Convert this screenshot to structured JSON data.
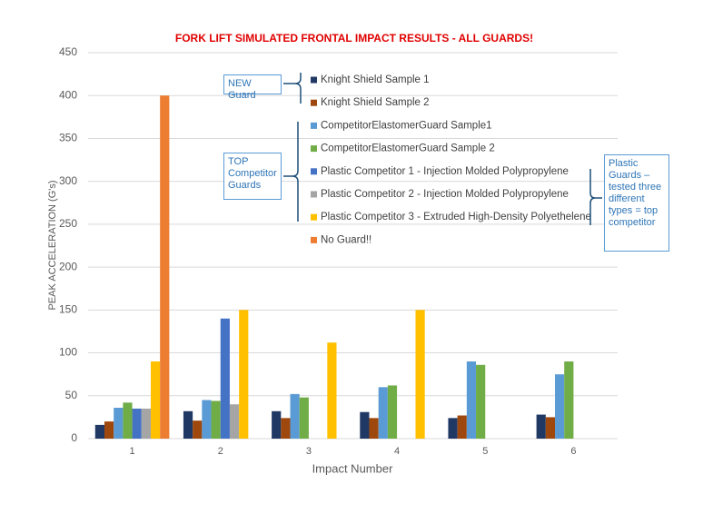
{
  "chart_data": {
    "type": "bar",
    "title": "FORK LIFT SIMULATED FRONTAL IMPACT RESULTS - ALL GUARDS!",
    "x_label": "Impact Number",
    "y_label": "PEAK ACCELERATION (G's)",
    "categories": [
      "1",
      "2",
      "3",
      "4",
      "5",
      "6"
    ],
    "series": [
      {
        "name": "Knight Shield Sample 1",
        "color": "#203864",
        "values": [
          16,
          32,
          32,
          31,
          24,
          28
        ]
      },
      {
        "name": "Knight Shield Sample 2",
        "color": "#9e480e",
        "values": [
          20,
          21,
          24,
          24,
          27,
          25
        ]
      },
      {
        "name": "CompetitorElastomerGuard Sample1",
        "color": "#5b9bd5",
        "values": [
          36,
          45,
          52,
          60,
          90,
          75
        ]
      },
      {
        "name": "CompetitorElastomerGuard Sample 2",
        "color": "#70ad47",
        "values": [
          42,
          44,
          48,
          62,
          86,
          90
        ]
      },
      {
        "name": "Plastic Competitor 1 - Injection Molded Polypropylene",
        "color": "#4472c4",
        "values": [
          35,
          140,
          null,
          null,
          null,
          null
        ]
      },
      {
        "name": "Plastic Competitor 2 - Injection Molded Polypropylene",
        "color": "#a5a5a5",
        "values": [
          35,
          40,
          null,
          null,
          null,
          null
        ]
      },
      {
        "name": "Plastic Competitor 3 - Extruded High-Density Polyethelene",
        "color": "#ffc000",
        "values": [
          90,
          150,
          112,
          150,
          null,
          null
        ]
      },
      {
        "name": "No Guard!!",
        "color": "#ed7d31",
        "values": [
          400,
          null,
          null,
          null,
          null,
          null
        ]
      }
    ],
    "ylim": [
      0,
      450
    ],
    "yticks": [
      0,
      50,
      100,
      150,
      200,
      250,
      300,
      350,
      400,
      450
    ],
    "grid": true,
    "annotations": [
      "NEW Guard",
      "TOP Competitor Guards",
      "Plastic Guards – tested three different types = top competitor"
    ]
  }
}
